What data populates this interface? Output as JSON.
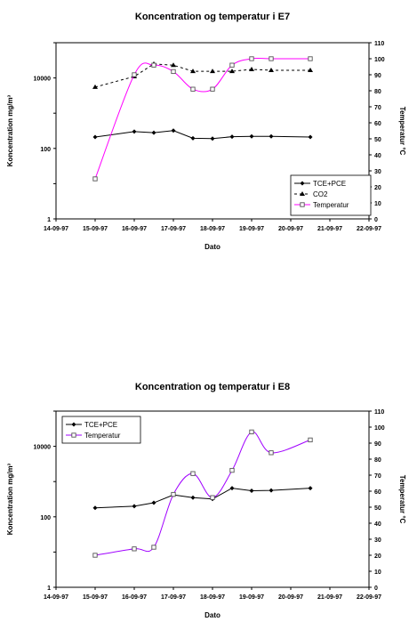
{
  "chart_data": [
    {
      "type": "line",
      "title": "Koncentration og temperatur i E7",
      "xlabel": "Dato",
      "ylabel": "Koncentration mg/m³",
      "y2label": "Temperatur °C",
      "x_ticks": [
        "14-09-97",
        "15-09-97",
        "16-09-97",
        "17-09-97",
        "18-09-97",
        "19-09-97",
        "20-09-97",
        "21-09-97",
        "22-09-97"
      ],
      "xlim": [
        0,
        8
      ],
      "ylim": [
        1,
        100000
      ],
      "y_scale": "log",
      "y_ticks": [
        "1",
        "100",
        "10000"
      ],
      "y2lim": [
        0,
        110
      ],
      "y2_ticks": [
        "0",
        "10",
        "20",
        "30",
        "40",
        "50",
        "60",
        "70",
        "80",
        "90",
        "100",
        "110"
      ],
      "legend": "bottom-right",
      "series": [
        {
          "name": "TCE+PCE",
          "axis": "left",
          "color": "#000000",
          "marker": "diamond",
          "dash": "",
          "x": [
            1.0,
            2.0,
            2.5,
            3.0,
            3.5,
            4.0,
            4.5,
            5.0,
            5.5,
            6.5
          ],
          "y": [
            210,
            300,
            280,
            320,
            195,
            190,
            215,
            220,
            220,
            210
          ]
        },
        {
          "name": "CO2",
          "axis": "left",
          "color": "#000000",
          "marker": "triangle",
          "dash": "3,3",
          "x": [
            1.0,
            2.0,
            2.5,
            3.0,
            3.5,
            4.0,
            4.5,
            5.0,
            5.5,
            6.5
          ],
          "y": [
            5500,
            11000,
            25000,
            23000,
            15500,
            15500,
            15500,
            17500,
            16500,
            16500
          ]
        },
        {
          "name": "Temperatur",
          "axis": "right",
          "color": "#ff00ff",
          "marker": "square",
          "dash": "",
          "x": [
            1.0,
            2.0,
            2.5,
            3.0,
            3.5,
            4.0,
            4.5,
            5.0,
            5.5,
            6.5
          ],
          "y": [
            25,
            90,
            96,
            92,
            81,
            81,
            96,
            100,
            100,
            100
          ]
        }
      ]
    },
    {
      "type": "line",
      "title": "Koncentration og temperatur i E8",
      "xlabel": "Dato",
      "ylabel": "Koncentration mg/m³",
      "y2label": "Temperatur °C",
      "x_ticks": [
        "14-09-97",
        "15-09-97",
        "16-09-97",
        "17-09-97",
        "18-09-97",
        "19-09-97",
        "20-09-97",
        "21-09-97",
        "22-09-97"
      ],
      "xlim": [
        0,
        8
      ],
      "ylim": [
        1,
        100000
      ],
      "y_scale": "log",
      "y_ticks": [
        "1",
        "100",
        "10000"
      ],
      "y2lim": [
        0,
        110
      ],
      "y2_ticks": [
        "0",
        "10",
        "20",
        "30",
        "40",
        "50",
        "60",
        "70",
        "80",
        "90",
        "100",
        "110"
      ],
      "legend": "top-left",
      "series": [
        {
          "name": "TCE+PCE",
          "axis": "left",
          "color": "#000000",
          "marker": "diamond",
          "dash": "",
          "x": [
            1.0,
            2.0,
            2.5,
            3.0,
            3.5,
            4.0,
            4.5,
            5.0,
            5.5,
            6.5
          ],
          "y": [
            180,
            200,
            250,
            420,
            350,
            320,
            650,
            550,
            560,
            650
          ]
        },
        {
          "name": "Temperatur",
          "axis": "right",
          "color": "#a000ff",
          "marker": "square",
          "dash": "",
          "x": [
            1.0,
            2.0,
            2.5,
            3.0,
            3.5,
            4.0,
            4.5,
            5.0,
            5.5,
            6.5
          ],
          "y": [
            20,
            24,
            25,
            58,
            71,
            56,
            73,
            97,
            84,
            92
          ]
        }
      ]
    }
  ]
}
